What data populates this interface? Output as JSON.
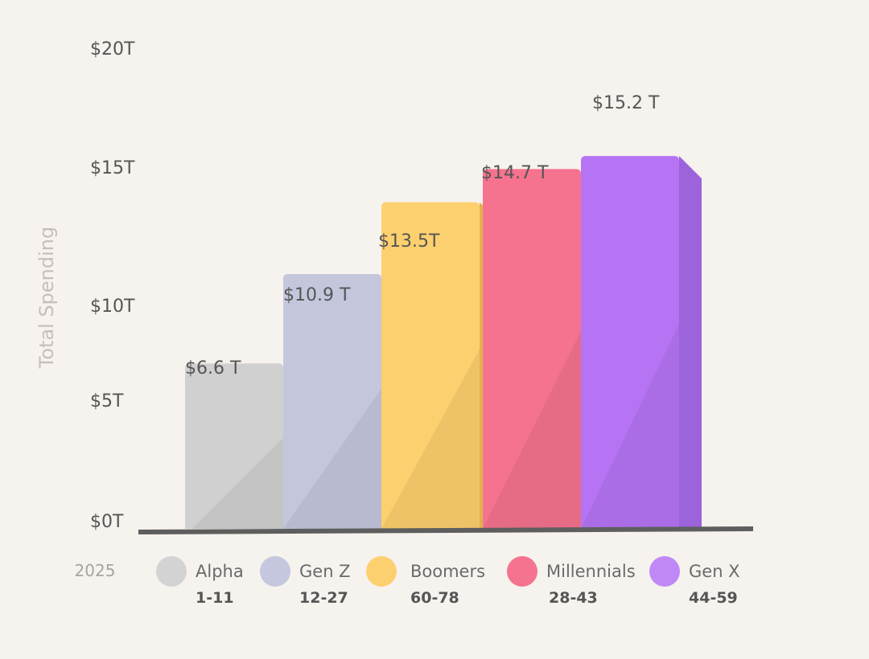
{
  "chart_data": {
    "type": "bar",
    "ylabel": "Total Spending",
    "year": "2025",
    "ylim": [
      0,
      20
    ],
    "y_ticks": [
      {
        "value": 0,
        "label": "$0T"
      },
      {
        "value": 5,
        "label": "$5T"
      },
      {
        "value": 10,
        "label": "$10T"
      },
      {
        "value": 15,
        "label": "$15T"
      },
      {
        "value": 20,
        "label": "$20T"
      }
    ],
    "bars": [
      {
        "name": "Alpha",
        "range": "1-11",
        "value": 6.6,
        "label": "$6.6 T",
        "color": "#d0d0d0",
        "side": "#b4b4b4"
      },
      {
        "name": "Gen Z",
        "range": "12-27",
        "value": 10.9,
        "label": "$10.9 T",
        "color": "#c4c6dc",
        "side": "#a8abc9"
      },
      {
        "name": "Boomers",
        "range": "60-78",
        "value": 13.5,
        "label": "$13.5T",
        "color": "#fdd06f",
        "side": "#e3b14d"
      },
      {
        "name": "Millennials",
        "range": "28-43",
        "value": 14.7,
        "label": "$14.7 T",
        "color": "#f5738e",
        "side": "#d85a77"
      },
      {
        "name": "Gen X",
        "range": "44-59",
        "value": 15.2,
        "label": "$15.2 T",
        "color": "#b674f4",
        "side": "#9c63da"
      }
    ],
    "legend_colors": [
      "#d3d3d3",
      "#c5c7de",
      "#fdd06f",
      "#f5738e",
      "#c088f7"
    ],
    "grid": false,
    "legend_placement": "bottom"
  }
}
